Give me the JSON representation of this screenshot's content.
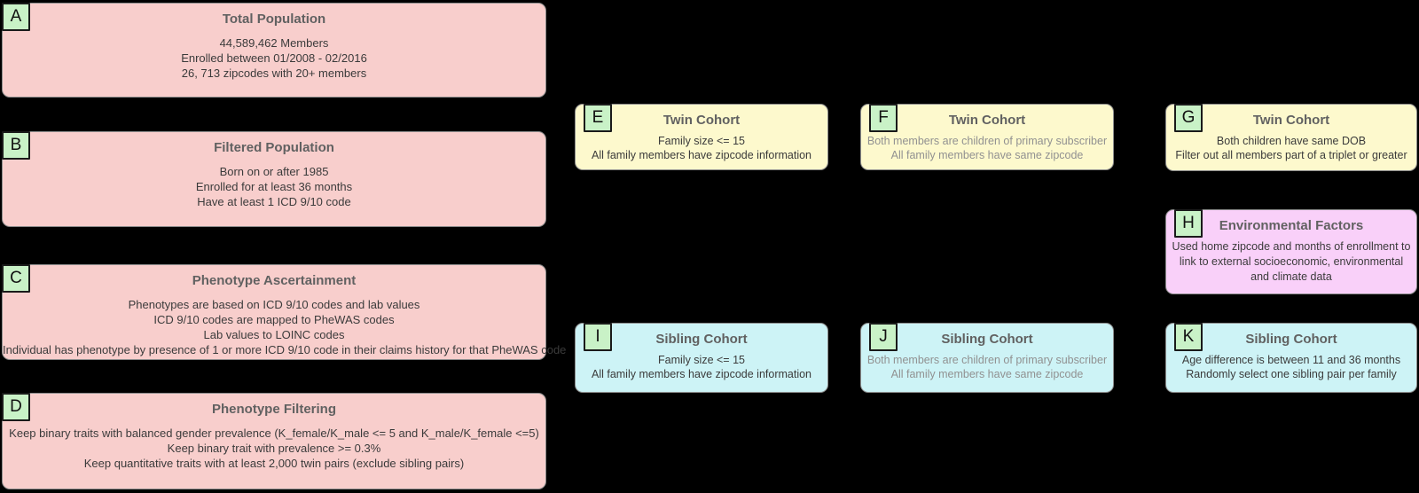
{
  "palette": {
    "bg": "#000000",
    "pink": "#F8CECC",
    "yellow": "#FDF9CD",
    "cyan": "#CDF3F6",
    "magenta": "#F9D0F9",
    "green": "#C9F2C7",
    "border_gray": "#8C8C8C",
    "badge_border": "#1A1A1A",
    "title_text": "#616161",
    "body_text": "#3B3B3B",
    "muted_text": "#919191"
  },
  "boxes": [
    {
      "letter": "A",
      "title": "Total Population",
      "lines": [
        "44,589,462 Members",
        "Enrolled between 01/2008 - 02/2016",
        "26, 713 zipcodes with 20+ members"
      ]
    },
    {
      "letter": "B",
      "title": "Filtered Population",
      "lines": [
        "Born on or after 1985",
        "Enrolled for at least 36 months",
        "Have at least 1 ICD 9/10 code"
      ]
    },
    {
      "letter": "C",
      "title": "Phenotype Ascertainment",
      "lines": [
        "Phenotypes are based on ICD 9/10 codes and lab values",
        "ICD 9/10 codes are mapped to PheWAS codes",
        "Lab values to LOINC codes",
        "Individual has phenotype by presence of 1 or more ICD 9/10 code in their claims history for that PheWAS code"
      ]
    },
    {
      "letter": "D",
      "title": "Phenotype Filtering",
      "lines": [
        "Keep binary traits with balanced gender prevalence (K_female/K_male <= 5 and K_male/K_female <=5)",
        "Keep binary trait with prevalence >= 0.3%",
        "Keep quantitative traits with at least 2,000 twin pairs (exclude sibling pairs)"
      ]
    },
    {
      "letter": "E",
      "title": "Twin Cohort",
      "lines": [
        "Family size <= 15",
        "All family members have zipcode information"
      ]
    },
    {
      "letter": "F",
      "title": "Twin Cohort",
      "lines": [
        "Both members are children of primary subscriber",
        "All family members have same zipcode"
      ]
    },
    {
      "letter": "G",
      "title": "Twin Cohort",
      "lines": [
        "Both children have same DOB",
        "Filter out all members part of a triplet or greater"
      ]
    },
    {
      "letter": "H",
      "title": "Environmental Factors",
      "body": "Used home zipcode and months of enrollment to link to external socioeconomic, environmental and climate data"
    },
    {
      "letter": "I",
      "title": "Sibling Cohort",
      "lines": [
        "Family size <= 15",
        "All family members have zipcode information"
      ]
    },
    {
      "letter": "J",
      "title": "Sibling Cohort",
      "lines": [
        "Both members are children of primary subscriber",
        "All family members have same zipcode"
      ]
    },
    {
      "letter": "K",
      "title": "Sibling Cohort",
      "lines": [
        "Age difference is between 11 and 36 months",
        "Randomly select one sibling pair per family"
      ]
    }
  ]
}
